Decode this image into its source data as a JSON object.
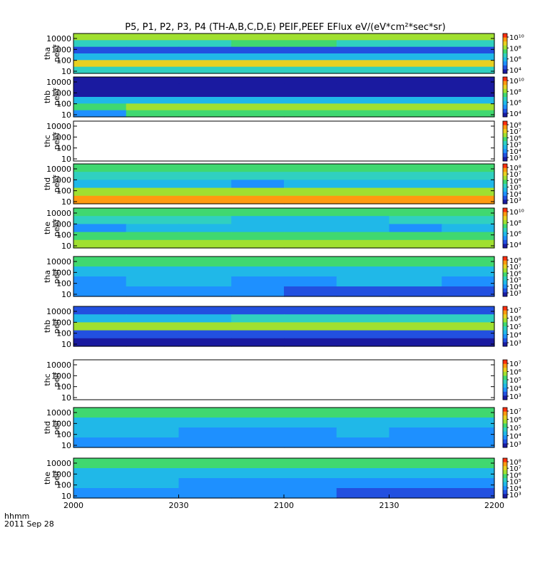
{
  "chart_data": {
    "type": "heatmap",
    "title": "P5, P1, P2, P3, P4 (TH-A,B,C,D,E) PEIF,PEEF EFlux eV/(eV*cm²*sec*sr)",
    "x_ticks": [
      "2000",
      "2030",
      "2100",
      "2130",
      "2200"
    ],
    "x_label": "hhmm",
    "date_label": "2011 Sep 28",
    "y_tick_labels": [
      "10000",
      "1000",
      "100",
      "10"
    ],
    "panels": [
      {
        "label": [
          "tha",
          "peef"
        ],
        "colorbar_ticks": [
          "10¹⁰",
          "10⁸",
          "10⁶",
          "10⁴"
        ],
        "rows": [
          [
            6,
            6,
            6,
            6,
            6,
            6,
            6,
            6
          ],
          [
            4,
            4,
            4,
            5,
            5,
            4,
            4,
            4
          ],
          [
            1,
            1,
            1,
            1,
            1,
            1,
            1,
            1
          ],
          [
            3,
            3,
            3,
            3,
            3,
            3,
            3,
            3
          ],
          [
            7,
            7,
            7,
            7,
            7,
            7,
            7,
            7
          ],
          [
            4,
            4,
            4,
            4,
            4,
            4,
            4,
            4
          ]
        ]
      },
      {
        "label": [
          "thb",
          "peef"
        ],
        "colorbar_ticks": [
          "10¹⁰",
          "10⁸",
          "10⁶",
          "10⁴"
        ],
        "rows": [
          [
            0,
            0,
            0,
            0,
            0,
            0,
            0,
            0
          ],
          [
            0,
            0,
            0,
            0,
            0,
            0,
            0,
            0
          ],
          [
            0,
            0,
            0,
            0,
            0,
            0,
            0,
            0
          ],
          [
            3,
            3,
            3,
            3,
            3,
            3,
            3,
            3
          ],
          [
            5,
            6,
            6,
            6,
            6,
            6,
            6,
            6
          ],
          [
            2,
            5,
            5,
            5,
            5,
            5,
            5,
            5
          ]
        ]
      },
      {
        "label": [
          "thc",
          "peef"
        ],
        "colorbar_ticks": [
          "10⁸",
          "10⁷",
          "10⁶",
          "10⁵",
          "10⁴",
          "10³"
        ],
        "rows": []
      },
      {
        "label": [
          "thd",
          "peef"
        ],
        "colorbar_ticks": [
          "10⁸",
          "10⁷",
          "10⁶",
          "10⁵",
          "10⁴",
          "10³"
        ],
        "rows": [
          [
            5,
            5,
            5,
            5,
            5,
            5,
            5,
            5
          ],
          [
            4,
            4,
            4,
            4,
            4,
            4,
            4,
            4
          ],
          [
            3,
            3,
            3,
            2,
            3,
            3,
            3,
            3
          ],
          [
            6,
            6,
            6,
            6,
            6,
            6,
            6,
            6
          ],
          [
            8,
            8,
            8,
            8,
            8,
            8,
            8,
            8
          ]
        ]
      },
      {
        "label": [
          "the",
          "peef"
        ],
        "colorbar_ticks": [
          "10¹⁰",
          "10⁸",
          "10⁶",
          "10⁴"
        ],
        "rows": [
          [
            5,
            5,
            5,
            5,
            5,
            5,
            5,
            5
          ],
          [
            4,
            4,
            4,
            3,
            3,
            3,
            4,
            4
          ],
          [
            2,
            3,
            3,
            3,
            3,
            3,
            2,
            3
          ],
          [
            5,
            5,
            5,
            5,
            5,
            5,
            5,
            5
          ],
          [
            6,
            6,
            6,
            6,
            6,
            6,
            6,
            6
          ]
        ]
      },
      {
        "label": [
          "tha",
          "peif"
        ],
        "colorbar_ticks": [
          "10⁸",
          "10⁷",
          "10⁶",
          "10⁵",
          "10⁴",
          "10³"
        ],
        "rows": [
          [
            5,
            5,
            5,
            5,
            5,
            5,
            5,
            5
          ],
          [
            3,
            3,
            3,
            3,
            3,
            3,
            3,
            3
          ],
          [
            2,
            3,
            3,
            2,
            2,
            3,
            3,
            2
          ],
          [
            2,
            2,
            2,
            2,
            1,
            1,
            1,
            1
          ]
        ]
      },
      {
        "label": [
          "thb",
          "peif"
        ],
        "colorbar_ticks": [
          "10⁷",
          "10⁶",
          "10⁵",
          "10⁴",
          "10³"
        ],
        "rows": [
          [
            1,
            1,
            1,
            1,
            1,
            1,
            1,
            1
          ],
          [
            3,
            3,
            3,
            4,
            4,
            4,
            4,
            4
          ],
          [
            6,
            6,
            6,
            6,
            6,
            6,
            6,
            6
          ],
          [
            1,
            1,
            1,
            1,
            1,
            1,
            1,
            1
          ],
          [
            0,
            0,
            0,
            0,
            0,
            0,
            0,
            0
          ]
        ]
      },
      {
        "label": [
          "thc",
          "peif"
        ],
        "colorbar_ticks": [
          "10⁷",
          "10⁶",
          "10⁵",
          "10⁴",
          "10³"
        ],
        "rows": []
      },
      {
        "label": [
          "thd",
          "peif"
        ],
        "colorbar_ticks": [
          "10⁷",
          "10⁶",
          "10⁵",
          "10⁴",
          "10³"
        ],
        "rows": [
          [
            5,
            5,
            5,
            5,
            5,
            5,
            5,
            5
          ],
          [
            3,
            3,
            3,
            3,
            3,
            3,
            3,
            3
          ],
          [
            3,
            3,
            2,
            2,
            2,
            3,
            2,
            2
          ],
          [
            2,
            2,
            2,
            2,
            2,
            2,
            2,
            2
          ]
        ]
      },
      {
        "label": [
          "the",
          "peif"
        ],
        "colorbar_ticks": [
          "10⁸",
          "10⁷",
          "10⁶",
          "10⁵",
          "10⁴",
          "10³"
        ],
        "rows": [
          [
            5,
            5,
            5,
            5,
            5,
            5,
            5,
            5
          ],
          [
            3,
            3,
            3,
            3,
            3,
            3,
            3,
            3
          ],
          [
            3,
            3,
            2,
            2,
            2,
            2,
            2,
            2
          ],
          [
            2,
            2,
            2,
            2,
            2,
            1,
            1,
            1
          ]
        ]
      }
    ]
  }
}
